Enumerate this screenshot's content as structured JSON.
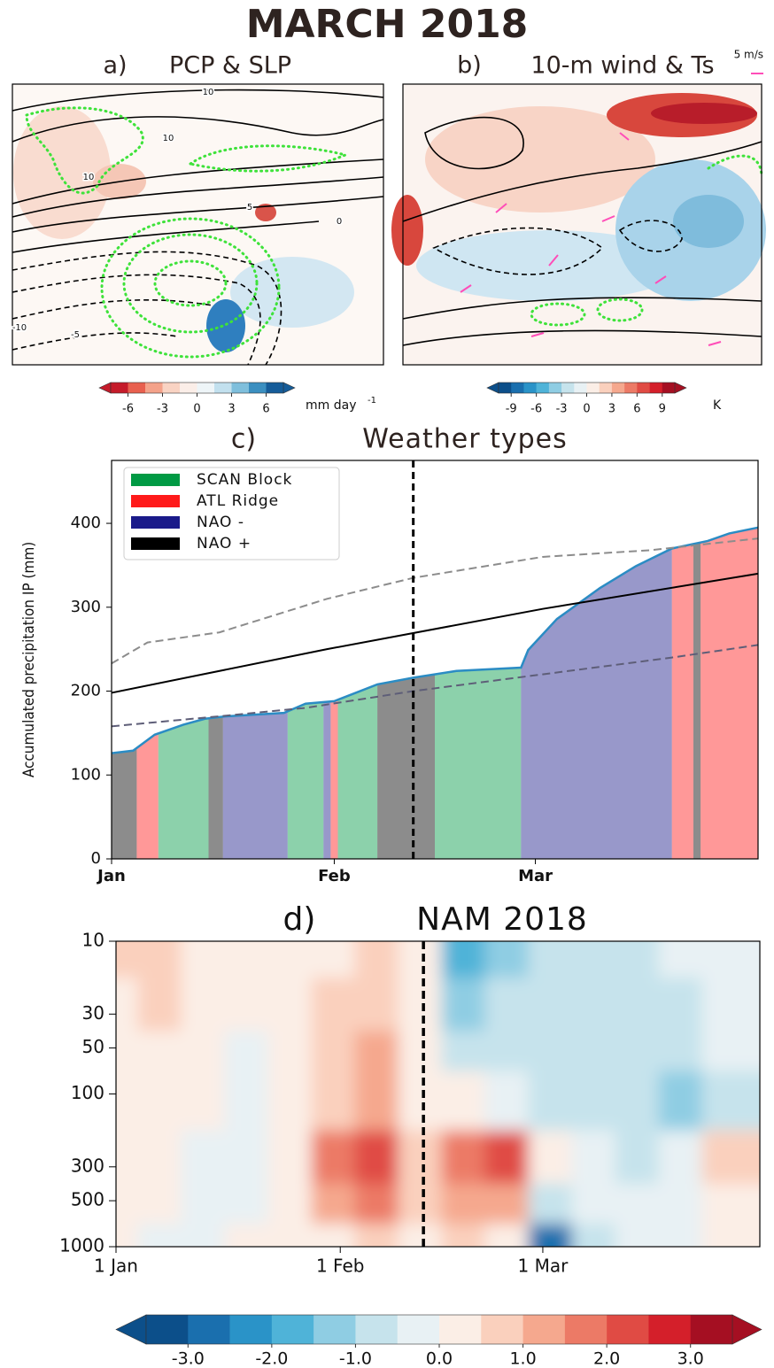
{
  "title": "MARCH 2018",
  "chart_data": [
    {
      "type": "map",
      "label": "a)",
      "title": "PCP & SLP",
      "contour_labels": [
        "10",
        "10",
        "10",
        "5",
        "0",
        "-5",
        "-10"
      ],
      "colorbar": {
        "bounds": [
          -7.5,
          -6,
          -4.5,
          -3,
          -1.5,
          0,
          1.5,
          3,
          4.5,
          6,
          7.5
        ],
        "colors": [
          "#c51b2a",
          "#e8604f",
          "#f4a28a",
          "#f9d3c3",
          "#fbeee8",
          "#eef5f8",
          "#c2e0ee",
          "#7fbfdc",
          "#3b8fc0",
          "#155c99"
        ],
        "ticks": [
          -6,
          -3,
          0,
          3,
          6
        ],
        "unit": "mm day",
        "unit_exponent": "-1"
      }
    },
    {
      "type": "map",
      "label": "b)",
      "title": "10-m wind & Ts",
      "scale_label": "5 m/s",
      "colorbar": {
        "bounds": [
          -10.5,
          -9,
          -7.5,
          -6,
          -4.5,
          -3,
          -1.5,
          0,
          1.5,
          3,
          4.5,
          6,
          7.5,
          9,
          10.5
        ],
        "colors": [
          "#0c4f8a",
          "#1a6fae",
          "#2a93c8",
          "#4fb3d8",
          "#8fcde3",
          "#c6e3ec",
          "#e8f1f4",
          "#fbeee6",
          "#fad0bd",
          "#f5a88e",
          "#ec7a66",
          "#e04b44",
          "#d41f2a",
          "#a50f22"
        ],
        "ticks": [
          -9,
          -6,
          -3,
          0,
          3,
          6,
          9
        ],
        "unit": "K"
      }
    },
    {
      "type": "area",
      "label": "c)",
      "title": "Weather types",
      "ylabel": "Accumulated precipitation IP (mm)",
      "x": [
        0,
        3,
        6,
        10,
        13,
        16,
        24,
        27,
        31,
        37,
        42,
        48,
        57,
        58,
        62,
        68,
        73,
        78,
        83,
        86,
        90
      ],
      "values": [
        126,
        129,
        148,
        160,
        167,
        170,
        174,
        185,
        188,
        208,
        216,
        224,
        228,
        249,
        286,
        323,
        349,
        370,
        379,
        388,
        395
      ],
      "line_color": "#2b8cc4",
      "regimes": [
        {
          "name": "SCAN Block",
          "color": "#009a44",
          "spans": [
            [
              6.5,
              13.5
            ],
            [
              24.5,
              29.5
            ],
            [
              31.5,
              37
            ],
            [
              45,
              57
            ]
          ]
        },
        {
          "name": "ATL Ridge",
          "color": "#ff1a1a",
          "spans": [
            [
              3.5,
              6.5
            ],
            [
              30.5,
              31.5
            ],
            [
              78,
              81
            ],
            [
              82,
              90
            ]
          ]
        },
        {
          "name": "NAO -",
          "color": "#1a1a8a",
          "spans": [
            [
              15.5,
              24.5
            ],
            [
              29.5,
              30.5
            ],
            [
              57,
              78
            ]
          ]
        },
        {
          "name": "NAO +",
          "color": "#000000",
          "spans": [
            [
              0,
              3.5
            ],
            [
              13.5,
              15.5
            ],
            [
              37,
              45
            ],
            [
              81,
              82
            ]
          ]
        }
      ],
      "lines": [
        {
          "color": "#000000",
          "dashed": false,
          "x": [
            0,
            30,
            60,
            90
          ],
          "values": [
            198,
            250,
            298,
            340
          ]
        },
        {
          "color": "#8c8c8c",
          "dashed": true,
          "x": [
            0,
            5,
            15,
            30,
            42,
            60,
            75,
            90
          ],
          "values": [
            233,
            258,
            270,
            310,
            335,
            360,
            368,
            382
          ]
        },
        {
          "color": "#5e5e78",
          "dashed": true,
          "x": [
            0,
            15,
            27,
            42,
            60,
            78,
            90
          ],
          "values": [
            158,
            170,
            180,
            200,
            220,
            240,
            255
          ]
        }
      ],
      "vline": 42,
      "xlim": [
        0,
        90
      ],
      "xticks": [
        {
          "value": 0,
          "label": "Jan"
        },
        {
          "value": 31,
          "label": "Feb"
        },
        {
          "value": 59,
          "label": "Mar"
        }
      ],
      "ylim": [
        0,
        475
      ],
      "yticks": [
        0,
        100,
        200,
        300,
        400
      ]
    },
    {
      "type": "contour",
      "label": "d)",
      "title": "NAM 2018",
      "x": [
        0,
        6,
        12,
        18,
        24,
        30,
        36,
        42,
        48,
        54,
        60,
        66,
        72,
        78,
        84
      ],
      "y": [
        10,
        30,
        50,
        100,
        300,
        500,
        1000
      ],
      "values": [
        [
          0.5,
          0.8,
          0.3,
          0.2,
          0.3,
          0.4,
          0.6,
          0.3,
          -1.8,
          -1.5,
          -1.0,
          -0.8,
          -0.6,
          -0.5,
          -0.3
        ],
        [
          0.3,
          0.5,
          0.3,
          0.2,
          0.3,
          0.5,
          0.8,
          0.2,
          -1.2,
          -1.0,
          -1.0,
          -0.8,
          -0.8,
          -0.6,
          -0.3
        ],
        [
          0.3,
          0.4,
          0.2,
          -0.2,
          0.3,
          0.6,
          1.0,
          0.2,
          -0.6,
          -0.8,
          -0.8,
          -0.6,
          -0.8,
          -1.0,
          -0.5
        ],
        [
          0.2,
          0.3,
          0.1,
          -0.3,
          0.2,
          0.8,
          1.2,
          0.4,
          0.3,
          -0.3,
          -0.8,
          -0.6,
          -0.8,
          -1.5,
          -0.6
        ],
        [
          0.3,
          0.2,
          -0.3,
          -0.2,
          0.4,
          1.5,
          2.2,
          0.8,
          1.8,
          2.0,
          0.3,
          -0.5,
          -0.6,
          -0.5,
          0.6
        ],
        [
          0.2,
          0.1,
          -0.3,
          -0.1,
          0.3,
          1.0,
          1.5,
          0.5,
          1.3,
          1.2,
          -1.0,
          -0.4,
          -0.3,
          -0.2,
          0.3
        ],
        [
          0.1,
          -0.3,
          -0.2,
          0.1,
          0.2,
          0.3,
          0.5,
          0.3,
          0.5,
          0.3,
          -2.8,
          -1.0,
          -0.2,
          -0.3,
          0.1
        ]
      ],
      "vline": 42.5,
      "xlim": [
        0,
        89
      ],
      "xticks": [
        {
          "value": 0,
          "label": "1 Jan"
        },
        {
          "value": 31,
          "label": "1 Feb"
        },
        {
          "value": 59,
          "label": "1 Mar"
        }
      ],
      "ylim": [
        1000,
        10
      ],
      "log_y": true,
      "yticks": [
        10,
        30,
        50,
        100,
        300,
        500,
        1000
      ],
      "colorbar": {
        "bounds": [
          -3.5,
          -3,
          -2.5,
          -2,
          -1.5,
          -1,
          -0.5,
          0,
          0.5,
          1,
          1.5,
          2,
          2.5,
          3,
          3.5
        ],
        "colors": [
          "#0c4f8a",
          "#1a6fae",
          "#2a93c8",
          "#4fb3d8",
          "#8fcde3",
          "#c6e3ec",
          "#e8f1f4",
          "#fbeee6",
          "#fad0bd",
          "#f5a88e",
          "#ec7a66",
          "#e04b44",
          "#d41f2a",
          "#a50f22"
        ],
        "ticks": [
          {
            "value": -3,
            "label": "-3.0"
          },
          {
            "value": -2,
            "label": "-2.0"
          },
          {
            "value": -1,
            "label": "-1.0"
          },
          {
            "value": 0,
            "label": "0.0"
          },
          {
            "value": 1,
            "label": "1.0"
          },
          {
            "value": 2,
            "label": "2.0"
          },
          {
            "value": 3,
            "label": "3.0"
          }
        ]
      }
    }
  ]
}
